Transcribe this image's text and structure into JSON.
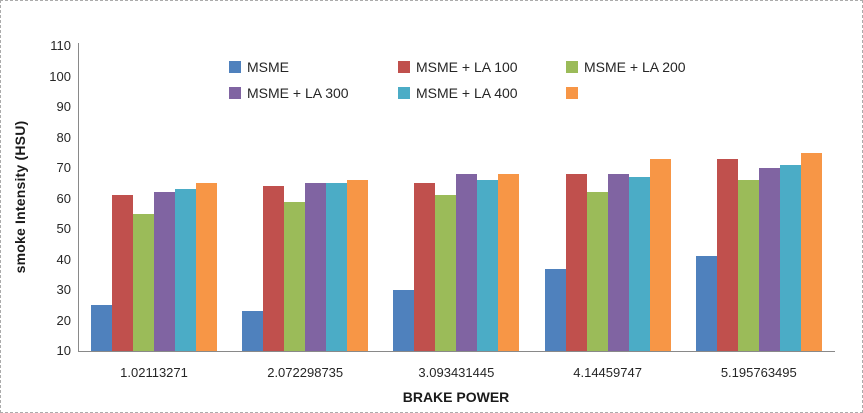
{
  "chart_data": {
    "type": "bar",
    "title": "",
    "xlabel": "BRAKE POWER",
    "ylabel": "smoke Intensity (HSU)",
    "ylim": [
      10,
      110
    ],
    "ytick_step": 10,
    "yticks": [
      110,
      100,
      90,
      80,
      70,
      60,
      50,
      40,
      30,
      20,
      10
    ],
    "categories": [
      "1.02113271",
      "2.072298735",
      "3.093431445",
      "4.14459747",
      "5.195763495"
    ],
    "series": [
      {
        "name": "MSME",
        "color": "#4F81BD",
        "values": [
          25,
          23,
          30,
          37,
          41
        ]
      },
      {
        "name": "MSME + LA 100",
        "color": "#C0504D",
        "values": [
          61,
          64,
          65,
          68,
          73
        ]
      },
      {
        "name": "MSME + LA 200",
        "color": "#9BBB59",
        "values": [
          55,
          59,
          61,
          62,
          66
        ]
      },
      {
        "name": "MSME + LA 300",
        "color": "#8064A2",
        "values": [
          62,
          65,
          68,
          68,
          70
        ]
      },
      {
        "name": "MSME + LA 400",
        "color": "#4BACC6",
        "values": [
          63,
          65,
          66,
          67,
          71
        ]
      },
      {
        "name": "",
        "color": "#F79646",
        "values": [
          65,
          66,
          68,
          73,
          75
        ]
      }
    ],
    "legend_position": "top-center",
    "legend_rows": 2,
    "grid": false,
    "axis_color": "#898989",
    "text_color": "#262626",
    "background_color": "#ffffff",
    "border_color": "#ababab"
  }
}
